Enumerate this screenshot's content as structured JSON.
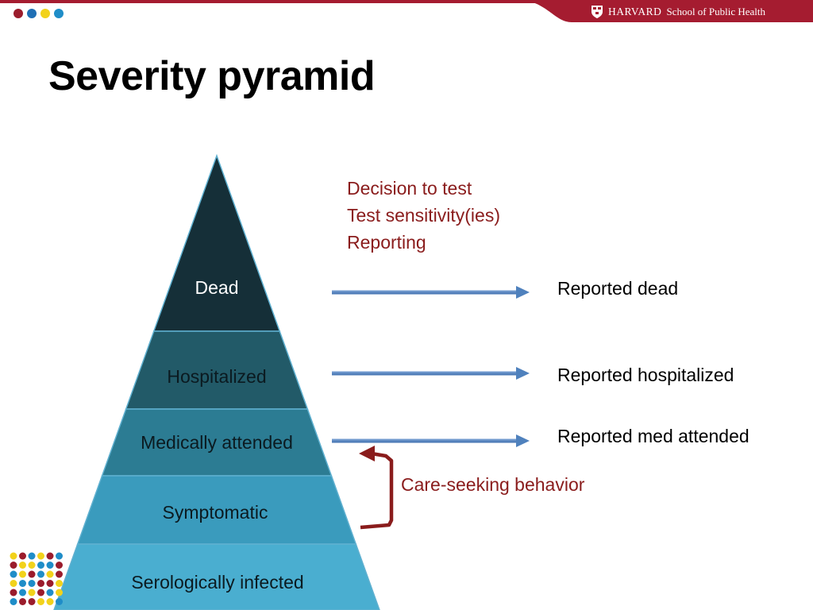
{
  "header": {
    "brand_name": "HARVARD",
    "brand_school": "School of Public Health",
    "brand_color": "#a51c30",
    "dot_colors": [
      "#9b1c2c",
      "#1f6fb5",
      "#f2d21b",
      "#1f8dc8"
    ]
  },
  "slide": {
    "title": "Severity pyramid"
  },
  "pyramid": {
    "tiers": [
      {
        "label": "Dead",
        "color": "#152f38"
      },
      {
        "label": "Hospitalized",
        "color": "#225a68"
      },
      {
        "label": "Medically attended",
        "color": "#2c7c93"
      },
      {
        "label": "Symptomatic",
        "color": "#3a9bbd"
      },
      {
        "label": "Serologically infected",
        "color": "#4aaed0"
      }
    ]
  },
  "factors": {
    "lines": [
      "Decision to test",
      "Test sensitivity(ies)",
      "Reporting"
    ],
    "color": "#8a1c1c"
  },
  "reported": [
    {
      "label": "Reported dead"
    },
    {
      "label": "Reported hospitalized"
    },
    {
      "label": "Reported med attended"
    }
  ],
  "care_seeking": {
    "label": "Care-seeking behavior",
    "color": "#8a1c1c"
  },
  "arrow_color": "#4f81bd"
}
